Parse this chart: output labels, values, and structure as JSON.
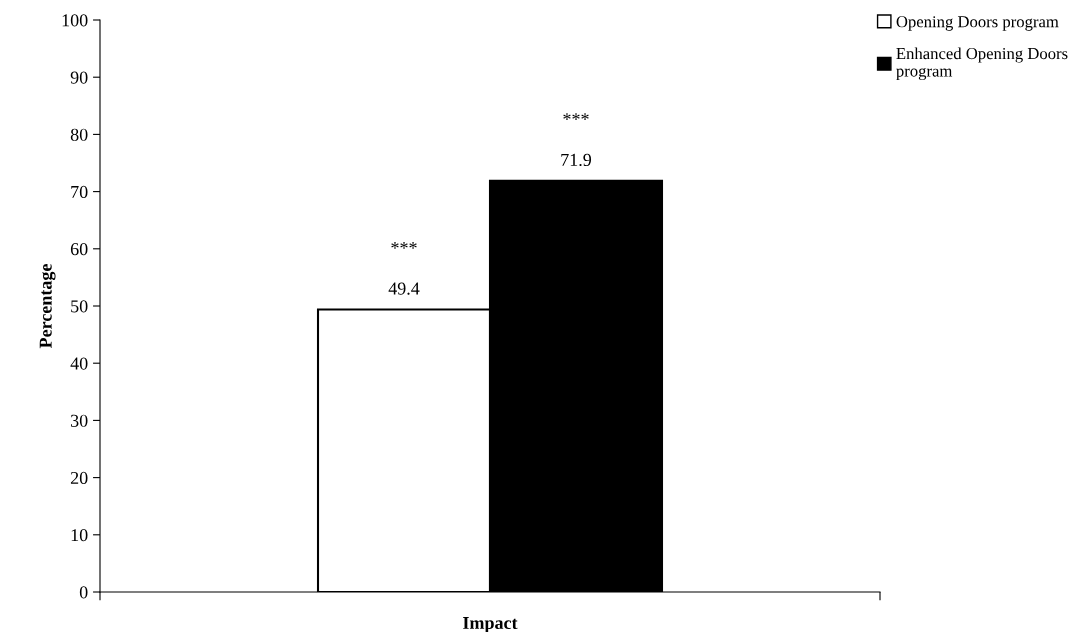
{
  "chart_data": {
    "type": "bar",
    "xlabel": "Impact",
    "ylabel": "Percentage",
    "categories": [
      null
    ],
    "series": [
      {
        "name": "Opening Doors program",
        "color": "#ffffff",
        "values": [
          49.4
        ]
      },
      {
        "name": "Enhanced Opening Doors program",
        "color": "#000000",
        "values": [
          71.9
        ]
      }
    ],
    "ylim": [
      0,
      100
    ],
    "yticks": [
      0,
      10,
      20,
      30,
      40,
      50,
      60,
      70,
      80,
      90,
      100
    ],
    "data_labels": true,
    "annotations": [
      "***",
      "***"
    ],
    "legend": "top right",
    "grid": false
  }
}
